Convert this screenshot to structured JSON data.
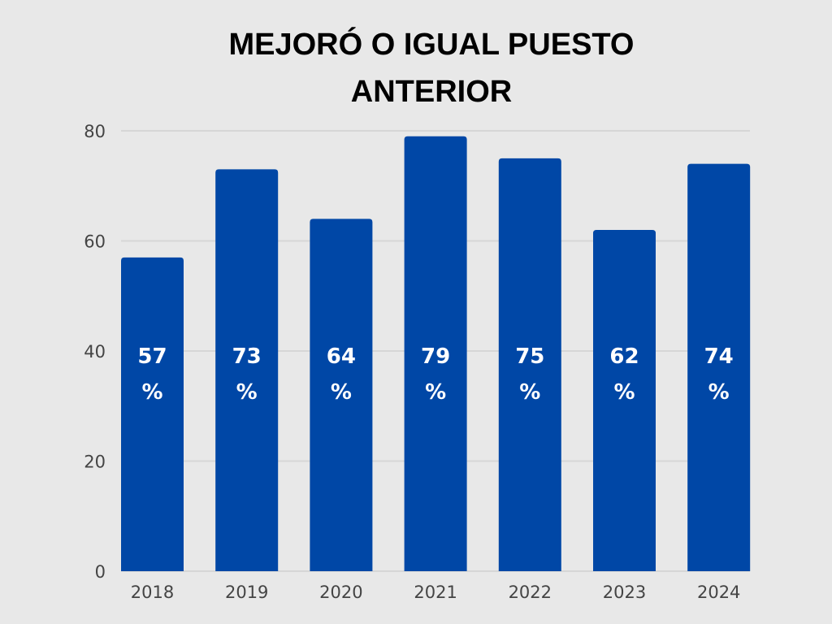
{
  "chart_data": {
    "type": "bar",
    "title_lines": [
      "MEJORÓ O IGUAL PUESTO",
      "ANTERIOR"
    ],
    "categories": [
      "2018",
      "2019",
      "2020",
      "2021",
      "2022",
      "2023",
      "2024"
    ],
    "values": [
      57,
      73,
      64,
      79,
      75,
      62,
      74
    ],
    "data_labels": [
      "57 %",
      "73 %",
      "64 %",
      "79 %",
      "75 %",
      "62 %",
      "74 %"
    ],
    "ylim": [
      0,
      80
    ],
    "yticks": [
      0,
      20,
      40,
      60,
      80
    ],
    "grid": true,
    "colors": {
      "bar": "#0047a6",
      "background": "#e8e8e8",
      "grid": "#d6d6d6"
    }
  }
}
